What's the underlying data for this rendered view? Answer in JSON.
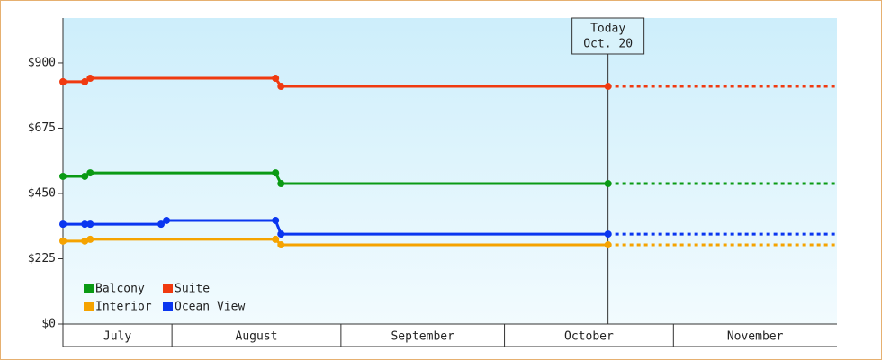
{
  "chart_data": {
    "type": "line",
    "annotation": {
      "x": 100,
      "lines": [
        "Today",
        "Oct. 20"
      ]
    },
    "xlim": [
      0,
      142
    ],
    "xticks": [
      {
        "value": 0,
        "label": "July"
      },
      {
        "value": 20,
        "label": "August"
      },
      {
        "value": 51,
        "label": "September"
      },
      {
        "value": 81,
        "label": "October"
      },
      {
        "value": 112,
        "label": "November"
      }
    ],
    "ylim": [
      0,
      1055
    ],
    "yticks": [
      {
        "value": 0,
        "label": "$0"
      },
      {
        "value": 225,
        "label": "$225"
      },
      {
        "value": 450,
        "label": "$450"
      },
      {
        "value": 675,
        "label": "$675"
      },
      {
        "value": 900,
        "label": "$900"
      }
    ],
    "series": [
      {
        "name": "Balcony",
        "color": "#0a9a14",
        "x": [
          0,
          4,
          5,
          39,
          40,
          100
        ],
        "values": [
          509,
          509,
          521,
          521,
          484,
          484
        ]
      },
      {
        "name": "Suite",
        "color": "#f03a10",
        "x": [
          0,
          4,
          5,
          39,
          40,
          100
        ],
        "values": [
          835,
          835,
          847,
          847,
          819,
          819
        ]
      },
      {
        "name": "Interior",
        "color": "#f5a300",
        "x": [
          0,
          4,
          5,
          39,
          40,
          100
        ],
        "values": [
          286,
          286,
          292,
          292,
          273,
          273
        ]
      },
      {
        "name": "Ocean View",
        "color": "#0a36f0",
        "x": [
          0,
          4,
          5,
          18,
          19,
          39,
          40,
          100
        ],
        "values": [
          344,
          344,
          344,
          344,
          357,
          357,
          310,
          310
        ]
      }
    ]
  }
}
